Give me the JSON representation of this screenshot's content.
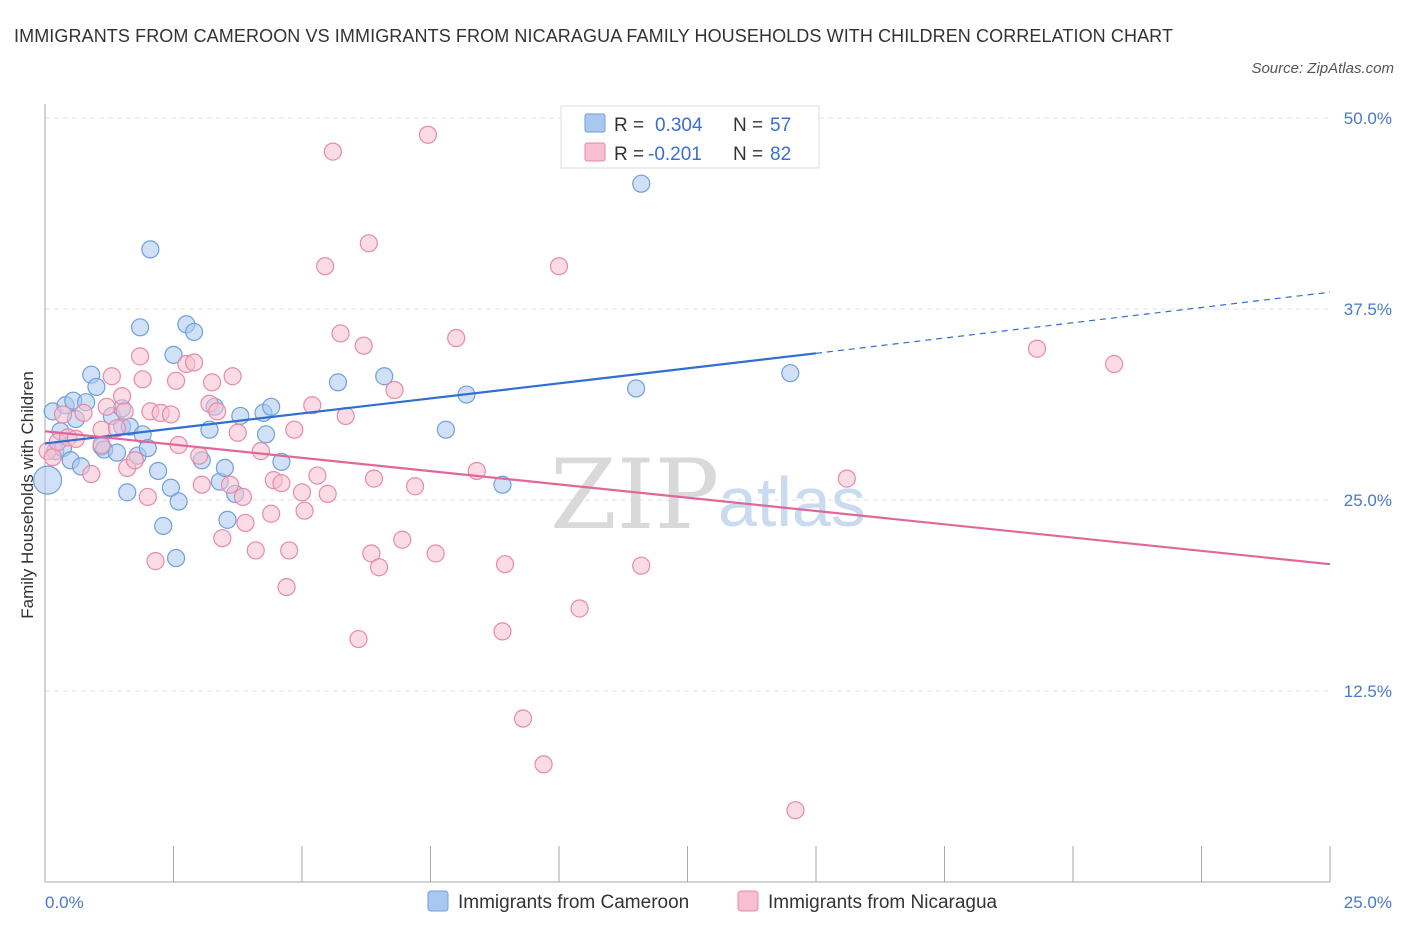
{
  "title": "IMMIGRANTS FROM CAMEROON VS IMMIGRANTS FROM NICARAGUA FAMILY HOUSEHOLDS WITH CHILDREN CORRELATION CHART",
  "source": "Source: ZipAtlas.com",
  "watermark": {
    "zip": "ZIP",
    "atlas": "atlas"
  },
  "legend": {
    "r_label": "R =",
    "n_label": "N =",
    "rows": [
      {
        "r": "0.304",
        "n": "57",
        "color": "#a9c8f0",
        "edge": "#6f9fdf"
      },
      {
        "r": "-0.201",
        "n": "82",
        "color": "#f8bfd0",
        "edge": "#e88aa7"
      }
    ]
  },
  "chart_data": {
    "type": "scatter",
    "title": "IMMIGRANTS FROM CAMEROON VS IMMIGRANTS FROM NICARAGUA FAMILY HOUSEHOLDS WITH CHILDREN CORRELATION CHART",
    "xlabel": "",
    "ylabel": "Family Households with Children",
    "xlim": [
      0,
      25
    ],
    "ylim": [
      0,
      50
    ],
    "x_tick_labels": [
      "0.0%",
      "25.0%"
    ],
    "y_ticks": [
      12.5,
      25.0,
      37.5,
      50.0
    ],
    "y_tick_labels": [
      "12.5%",
      "25.0%",
      "37.5%",
      "50.0%"
    ],
    "grid": true,
    "legend_position": "top-center",
    "series": [
      {
        "name": "Immigrants from Cameroon",
        "color": "#6f9fdf",
        "fill": "#a9c8f0",
        "trend": {
          "x": [
            0,
            15
          ],
          "y": [
            28.7,
            34.6
          ],
          "dashed_to": [
            25,
            38.6
          ],
          "color": "#2f6fd0"
        },
        "points": [
          [
            0.05,
            26.3
          ],
          [
            0.15,
            30.8
          ],
          [
            0.2,
            28.2
          ],
          [
            0.3,
            29.5
          ],
          [
            0.35,
            28.4
          ],
          [
            0.4,
            31.2
          ],
          [
            0.5,
            27.6
          ],
          [
            0.55,
            31.5
          ],
          [
            0.6,
            30.3
          ],
          [
            0.7,
            27.2
          ],
          [
            0.8,
            31.4
          ],
          [
            0.9,
            33.2
          ],
          [
            1.0,
            32.4
          ],
          [
            1.1,
            28.5
          ],
          [
            1.15,
            28.3
          ],
          [
            1.3,
            30.5
          ],
          [
            1.4,
            28.1
          ],
          [
            1.5,
            31.0
          ],
          [
            1.5,
            29.8
          ],
          [
            1.6,
            25.5
          ],
          [
            1.65,
            29.8
          ],
          [
            1.8,
            27.9
          ],
          [
            1.85,
            36.3
          ],
          [
            1.9,
            29.3
          ],
          [
            2.0,
            28.4
          ],
          [
            2.05,
            41.4
          ],
          [
            2.2,
            26.9
          ],
          [
            2.3,
            23.3
          ],
          [
            2.45,
            25.8
          ],
          [
            2.5,
            34.5
          ],
          [
            2.55,
            21.2
          ],
          [
            2.6,
            24.9
          ],
          [
            2.75,
            36.5
          ],
          [
            2.9,
            36.0
          ],
          [
            3.05,
            27.6
          ],
          [
            3.2,
            29.6
          ],
          [
            3.3,
            31.1
          ],
          [
            3.4,
            26.2
          ],
          [
            3.5,
            27.1
          ],
          [
            3.55,
            23.7
          ],
          [
            3.7,
            25.4
          ],
          [
            3.8,
            30.5
          ],
          [
            4.25,
            30.7
          ],
          [
            4.3,
            29.3
          ],
          [
            4.4,
            31.1
          ],
          [
            4.6,
            27.5
          ],
          [
            5.7,
            32.7
          ],
          [
            6.6,
            33.1
          ],
          [
            7.8,
            29.6
          ],
          [
            8.2,
            31.9
          ],
          [
            8.9,
            26.0
          ],
          [
            11.5,
            32.3
          ],
          [
            11.6,
            45.7
          ],
          [
            14.5,
            33.3
          ]
        ]
      },
      {
        "name": "Immigrants from Nicaragua",
        "color": "#e88aa7",
        "fill": "#f8bfd0",
        "trend": {
          "x": [
            0,
            25
          ],
          "y": [
            29.5,
            20.8
          ],
          "color": "#e0679a"
        },
        "points": [
          [
            0.05,
            28.2
          ],
          [
            0.15,
            27.8
          ],
          [
            0.25,
            28.8
          ],
          [
            0.35,
            30.6
          ],
          [
            0.45,
            29.1
          ],
          [
            0.6,
            29.0
          ],
          [
            0.75,
            30.7
          ],
          [
            0.9,
            26.7
          ],
          [
            1.1,
            28.6
          ],
          [
            1.1,
            29.6
          ],
          [
            1.2,
            31.1
          ],
          [
            1.3,
            33.1
          ],
          [
            1.4,
            29.7
          ],
          [
            1.5,
            31.8
          ],
          [
            1.55,
            30.8
          ],
          [
            1.6,
            27.1
          ],
          [
            1.75,
            27.6
          ],
          [
            1.85,
            34.4
          ],
          [
            1.9,
            32.9
          ],
          [
            2.0,
            25.2
          ],
          [
            2.05,
            30.8
          ],
          [
            2.15,
            21.0
          ],
          [
            2.25,
            30.7
          ],
          [
            2.45,
            30.6
          ],
          [
            2.55,
            32.8
          ],
          [
            2.6,
            28.6
          ],
          [
            2.75,
            33.9
          ],
          [
            2.9,
            34.0
          ],
          [
            3.0,
            27.9
          ],
          [
            3.05,
            26.0
          ],
          [
            3.2,
            31.3
          ],
          [
            3.25,
            32.7
          ],
          [
            3.35,
            30.8
          ],
          [
            3.45,
            22.5
          ],
          [
            3.6,
            26.0
          ],
          [
            3.65,
            33.1
          ],
          [
            3.75,
            29.4
          ],
          [
            3.85,
            25.2
          ],
          [
            3.9,
            23.5
          ],
          [
            4.1,
            21.7
          ],
          [
            4.2,
            28.2
          ],
          [
            4.4,
            24.1
          ],
          [
            4.45,
            26.3
          ],
          [
            4.6,
            26.1
          ],
          [
            4.7,
            19.3
          ],
          [
            4.75,
            21.7
          ],
          [
            4.85,
            29.6
          ],
          [
            5.0,
            25.5
          ],
          [
            5.05,
            24.3
          ],
          [
            5.2,
            31.2
          ],
          [
            5.3,
            26.6
          ],
          [
            5.45,
            40.3
          ],
          [
            5.5,
            25.4
          ],
          [
            5.6,
            47.8
          ],
          [
            5.75,
            35.9
          ],
          [
            5.85,
            30.5
          ],
          [
            6.1,
            15.9
          ],
          [
            6.2,
            35.1
          ],
          [
            6.3,
            41.8
          ],
          [
            6.35,
            21.5
          ],
          [
            6.4,
            26.4
          ],
          [
            6.5,
            20.6
          ],
          [
            6.8,
            32.2
          ],
          [
            6.95,
            22.4
          ],
          [
            7.2,
            25.9
          ],
          [
            7.45,
            48.9
          ],
          [
            7.6,
            21.5
          ],
          [
            8.0,
            35.6
          ],
          [
            8.4,
            26.9
          ],
          [
            8.9,
            16.4
          ],
          [
            8.95,
            20.8
          ],
          [
            9.3,
            10.7
          ],
          [
            9.7,
            7.7
          ],
          [
            10.0,
            40.3
          ],
          [
            10.4,
            17.9
          ],
          [
            11.6,
            20.7
          ],
          [
            14.6,
            4.7
          ],
          [
            15.6,
            26.4
          ],
          [
            19.3,
            34.9
          ],
          [
            20.8,
            33.9
          ]
        ]
      }
    ]
  },
  "bottom_legend": [
    {
      "label": "Immigrants from Cameroon",
      "color": "#a9c8f0",
      "edge": "#6f9fdf"
    },
    {
      "label": "Immigrants from Nicaragua",
      "color": "#f8bfd0",
      "edge": "#e88aa7"
    }
  ]
}
